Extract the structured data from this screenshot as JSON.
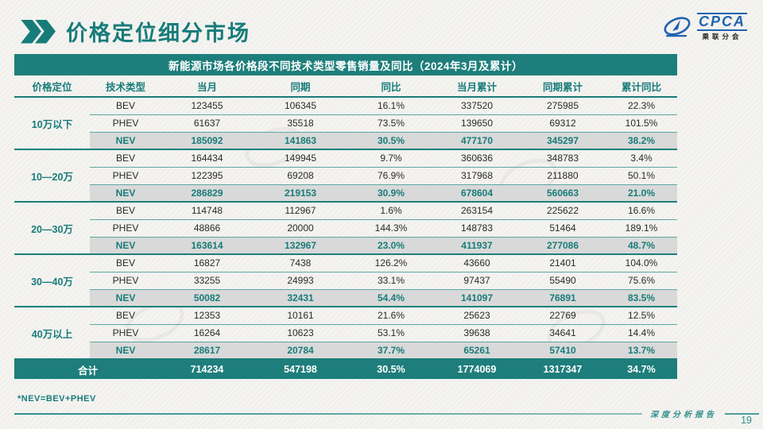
{
  "page": {
    "title": "价格定位细分市场",
    "footnote": "*NEV=BEV+PHEV",
    "footer_label": "深度分析报告",
    "page_number": "19"
  },
  "logo": {
    "name": "CPCA",
    "subtitle": "乘联分会"
  },
  "colors": {
    "teal": "#177c79",
    "table_header_bg": "#1e7e7b",
    "nev_row_bg": "#d9d9d9",
    "logo_blue": "#1e62b0"
  },
  "table": {
    "title": "新能源市场各价格段不同技术类型零售销量及同比（2024年3月及累计）",
    "columns": [
      "价格定位",
      "技术类型",
      "当月",
      "同期",
      "同比",
      "当月累计",
      "同期累计",
      "累计同比"
    ],
    "groups": [
      {
        "segment": "10万以下",
        "rows": [
          {
            "type": "BEV",
            "values": [
              "123455",
              "106345",
              "16.1%",
              "337520",
              "275985",
              "22.3%"
            ]
          },
          {
            "type": "PHEV",
            "values": [
              "61637",
              "35518",
              "73.5%",
              "139650",
              "69312",
              "101.5%"
            ]
          },
          {
            "type": "NEV",
            "values": [
              "185092",
              "141863",
              "30.5%",
              "477170",
              "345297",
              "38.2%"
            ]
          }
        ]
      },
      {
        "segment": "10—20万",
        "rows": [
          {
            "type": "BEV",
            "values": [
              "164434",
              "149945",
              "9.7%",
              "360636",
              "348783",
              "3.4%"
            ]
          },
          {
            "type": "PHEV",
            "values": [
              "122395",
              "69208",
              "76.9%",
              "317968",
              "211880",
              "50.1%"
            ]
          },
          {
            "type": "NEV",
            "values": [
              "286829",
              "219153",
              "30.9%",
              "678604",
              "560663",
              "21.0%"
            ]
          }
        ]
      },
      {
        "segment": "20—30万",
        "rows": [
          {
            "type": "BEV",
            "values": [
              "114748",
              "112967",
              "1.6%",
              "263154",
              "225622",
              "16.6%"
            ]
          },
          {
            "type": "PHEV",
            "values": [
              "48866",
              "20000",
              "144.3%",
              "148783",
              "51464",
              "189.1%"
            ]
          },
          {
            "type": "NEV",
            "values": [
              "163614",
              "132967",
              "23.0%",
              "411937",
              "277086",
              "48.7%"
            ]
          }
        ]
      },
      {
        "segment": "30—40万",
        "rows": [
          {
            "type": "BEV",
            "values": [
              "16827",
              "7438",
              "126.2%",
              "43660",
              "21401",
              "104.0%"
            ]
          },
          {
            "type": "PHEV",
            "values": [
              "33255",
              "24993",
              "33.1%",
              "97437",
              "55490",
              "75.6%"
            ]
          },
          {
            "type": "NEV",
            "values": [
              "50082",
              "32431",
              "54.4%",
              "141097",
              "76891",
              "83.5%"
            ]
          }
        ]
      },
      {
        "segment": "40万以上",
        "rows": [
          {
            "type": "BEV",
            "values": [
              "12353",
              "10161",
              "21.6%",
              "25623",
              "22769",
              "12.5%"
            ]
          },
          {
            "type": "PHEV",
            "values": [
              "16264",
              "10623",
              "53.1%",
              "39638",
              "34641",
              "14.4%"
            ]
          },
          {
            "type": "NEV",
            "values": [
              "28617",
              "20784",
              "37.7%",
              "65261",
              "57410",
              "13.7%"
            ]
          }
        ]
      }
    ],
    "total": {
      "label": "合计",
      "values": [
        "714234",
        "547198",
        "30.5%",
        "1774069",
        "1317347",
        "34.7%"
      ]
    }
  }
}
